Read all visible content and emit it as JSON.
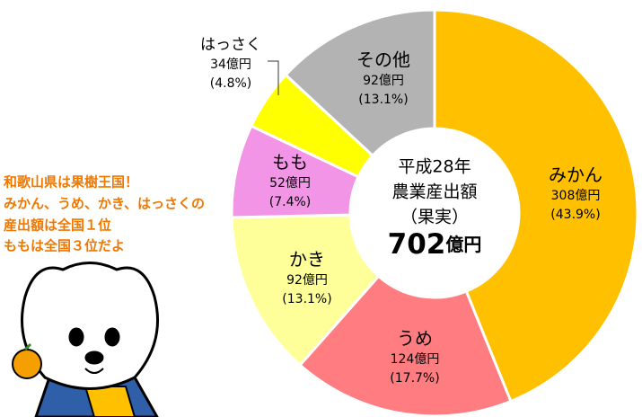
{
  "chart_data": {
    "type": "donut",
    "categories": [
      "みかん",
      "うめ",
      "かき",
      "もも",
      "はっさく",
      "その他"
    ],
    "values": [
      308,
      124,
      92,
      52,
      34,
      92
    ],
    "value_labels": [
      "308億円",
      "124億円",
      "92億円",
      "52億円",
      "34億円",
      "92億円"
    ],
    "shares": [
      43.9,
      17.7,
      13.1,
      7.4,
      4.8,
      13.1
    ],
    "share_labels": [
      "(43.9%)",
      "(17.7%)",
      "(13.1%)",
      "(7.4%)",
      "(4.8%)",
      "(13.1%)"
    ],
    "colors": [
      "#ffc000",
      "#ff7c80",
      "#ffff99",
      "#f395e6",
      "#ffff00",
      "#b3b3b3"
    ],
    "center_lines": [
      "平成28年",
      "農業産出額",
      "（果実）"
    ],
    "total": 702,
    "total_unit": "億円",
    "annotation": [
      "和歌山県は果樹王国！",
      "みかん、うめ、かき、はっさくの",
      "産出額は全国１位",
      "ももは全国３位だよ"
    ]
  }
}
